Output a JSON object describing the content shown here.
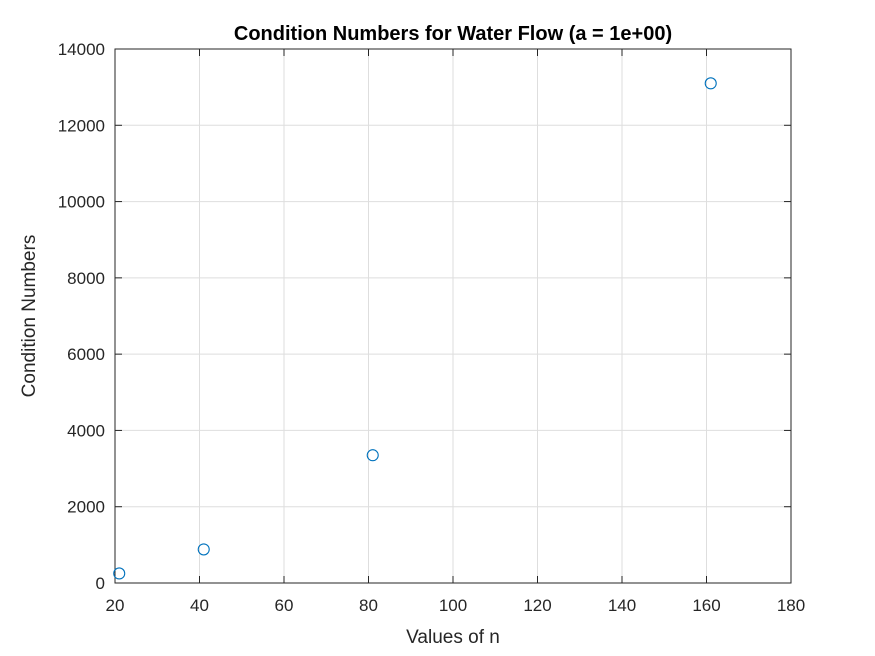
{
  "chart_data": {
    "type": "scatter",
    "title": "Condition Numbers for Water Flow (a = 1e+00)",
    "xlabel": "Values of n",
    "ylabel": "Condition Numbers",
    "xlim": [
      20,
      180
    ],
    "ylim": [
      0,
      14000
    ],
    "xticks": [
      "20",
      "40",
      "60",
      "80",
      "100",
      "120",
      "140",
      "160",
      "180"
    ],
    "yticks": [
      "0",
      "2000",
      "4000",
      "6000",
      "8000",
      "10000",
      "12000",
      "14000"
    ],
    "grid": true,
    "marker": "circle-open",
    "colors": {
      "marker": "#0072BD",
      "grid": "#dedede",
      "axis": "#262626"
    },
    "series": [
      {
        "x": [
          21,
          41,
          81,
          161
        ],
        "y": [
          250,
          880,
          3350,
          13100
        ]
      }
    ]
  }
}
